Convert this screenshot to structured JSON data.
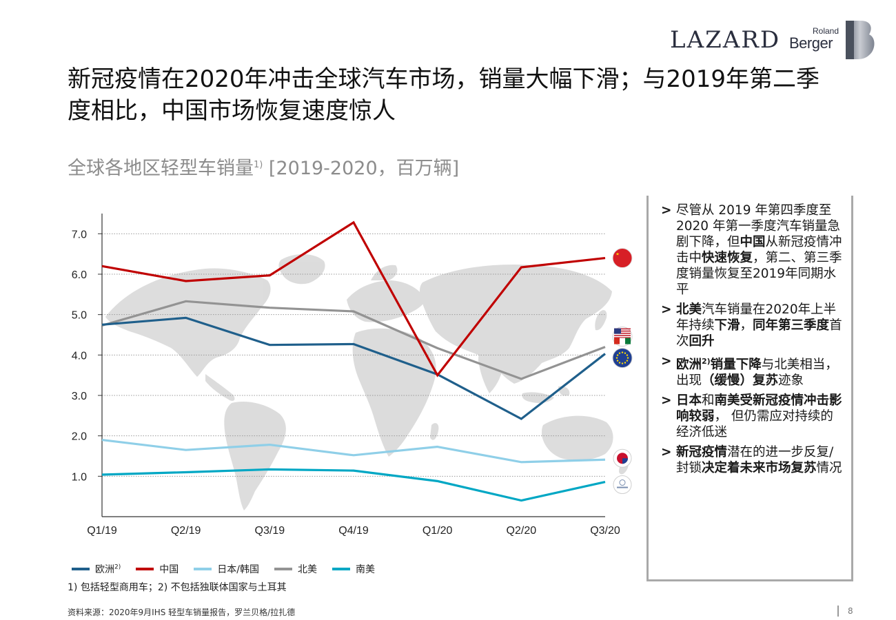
{
  "header": {
    "logo_lazard": "LAZARD",
    "logo_roland": "Roland",
    "logo_berger": "Berger"
  },
  "title": "新冠疫情在2020年冲击全球汽车市场，销量大幅下滑；与2019年第二季度相比，中国市场恢复速度惊人",
  "subtitle": {
    "main": "全球各地区轻型车销量",
    "sup": "1)",
    "unit": " [2019-2020，百万辆]"
  },
  "chart_data": {
    "type": "line",
    "x": [
      "Q1/19",
      "Q2/19",
      "Q3/19",
      "Q4/19",
      "Q1/20",
      "Q2/20",
      "Q3/20"
    ],
    "ylim": [
      0,
      7.5
    ],
    "yticks": [
      "1.0",
      "2.0",
      "3.0",
      "4.0",
      "5.0",
      "6.0",
      "7.0"
    ],
    "grid": true,
    "legend_position": "bottom",
    "series": [
      {
        "name": "欧洲",
        "sup": "2)",
        "color": "#1f5f8b",
        "values": [
          4.75,
          4.92,
          4.25,
          4.27,
          3.52,
          2.42,
          4.03
        ]
      },
      {
        "name": "中国",
        "sup": "",
        "color": "#c00000",
        "values": [
          6.2,
          5.83,
          5.97,
          7.28,
          3.5,
          6.17,
          6.4
        ]
      },
      {
        "name": "日本/韩国",
        "sup": "",
        "color": "#8fcfe8",
        "values": [
          1.9,
          1.65,
          1.78,
          1.52,
          1.73,
          1.35,
          1.41
        ]
      },
      {
        "name": "北美",
        "sup": "",
        "color": "#939393",
        "values": [
          4.73,
          5.33,
          5.17,
          5.08,
          4.17,
          3.41,
          4.2
        ]
      },
      {
        "name": "南美",
        "sup": "",
        "color": "#00a7c4",
        "values": [
          1.04,
          1.1,
          1.17,
          1.14,
          0.88,
          0.4,
          0.86
        ]
      }
    ],
    "flag_icons": [
      "china-flag-icon",
      "usa-canada-mexico-flag-icon",
      "eu-flag-icon",
      "japan-korea-flag-icon",
      "south-america-flag-icon"
    ]
  },
  "sidebar": {
    "bullets": [
      [
        {
          "t": "尽管从 2019 年第四季度至2020 年第一季度汽车销量急剧下降，但",
          "b": false
        },
        {
          "t": "中国",
          "b": true
        },
        {
          "t": "从新冠疫情冲击中",
          "b": false
        },
        {
          "t": "快速恢复",
          "b": true
        },
        {
          "t": "，第二、第三季度销量恢复至2019年同期水平",
          "b": false
        }
      ],
      [
        {
          "t": "北美",
          "b": true
        },
        {
          "t": "汽车销量在2020年上半年持续",
          "b": false
        },
        {
          "t": "下滑",
          "b": true
        },
        {
          "t": "，",
          "b": false
        },
        {
          "t": "同年第三季度",
          "b": true
        },
        {
          "t": "首次",
          "b": false
        },
        {
          "t": "回升",
          "b": true
        }
      ],
      [
        {
          "t": "欧洲",
          "b": true
        },
        {
          "t": "2)",
          "b": true,
          "sup": true
        },
        {
          "t": "销量下降",
          "b": true
        },
        {
          "t": "与北美相当，出现",
          "b": false
        },
        {
          "t": "（缓慢）复苏",
          "b": true
        },
        {
          "t": "迹象",
          "b": false
        }
      ],
      [
        {
          "t": "日本",
          "b": true
        },
        {
          "t": "和",
          "b": false
        },
        {
          "t": "南美受新冠疫情冲击影响较弱",
          "b": true
        },
        {
          "t": "， 但仍需应对持续的经济低迷",
          "b": false
        }
      ],
      [
        {
          "t": "新冠疫情",
          "b": true
        },
        {
          "t": "潜在的进一步反复/封锁",
          "b": false
        },
        {
          "t": "决定着未来市场复苏",
          "b": true
        },
        {
          "t": "情况",
          "b": false
        }
      ]
    ]
  },
  "footnote": "1) 包括轻型商用车；2) 不包括独联体国家与土耳其",
  "source": "资料来源：2020年9月IHS 轻型车销量报告，罗兰贝格/拉扎德",
  "page_number": "8"
}
